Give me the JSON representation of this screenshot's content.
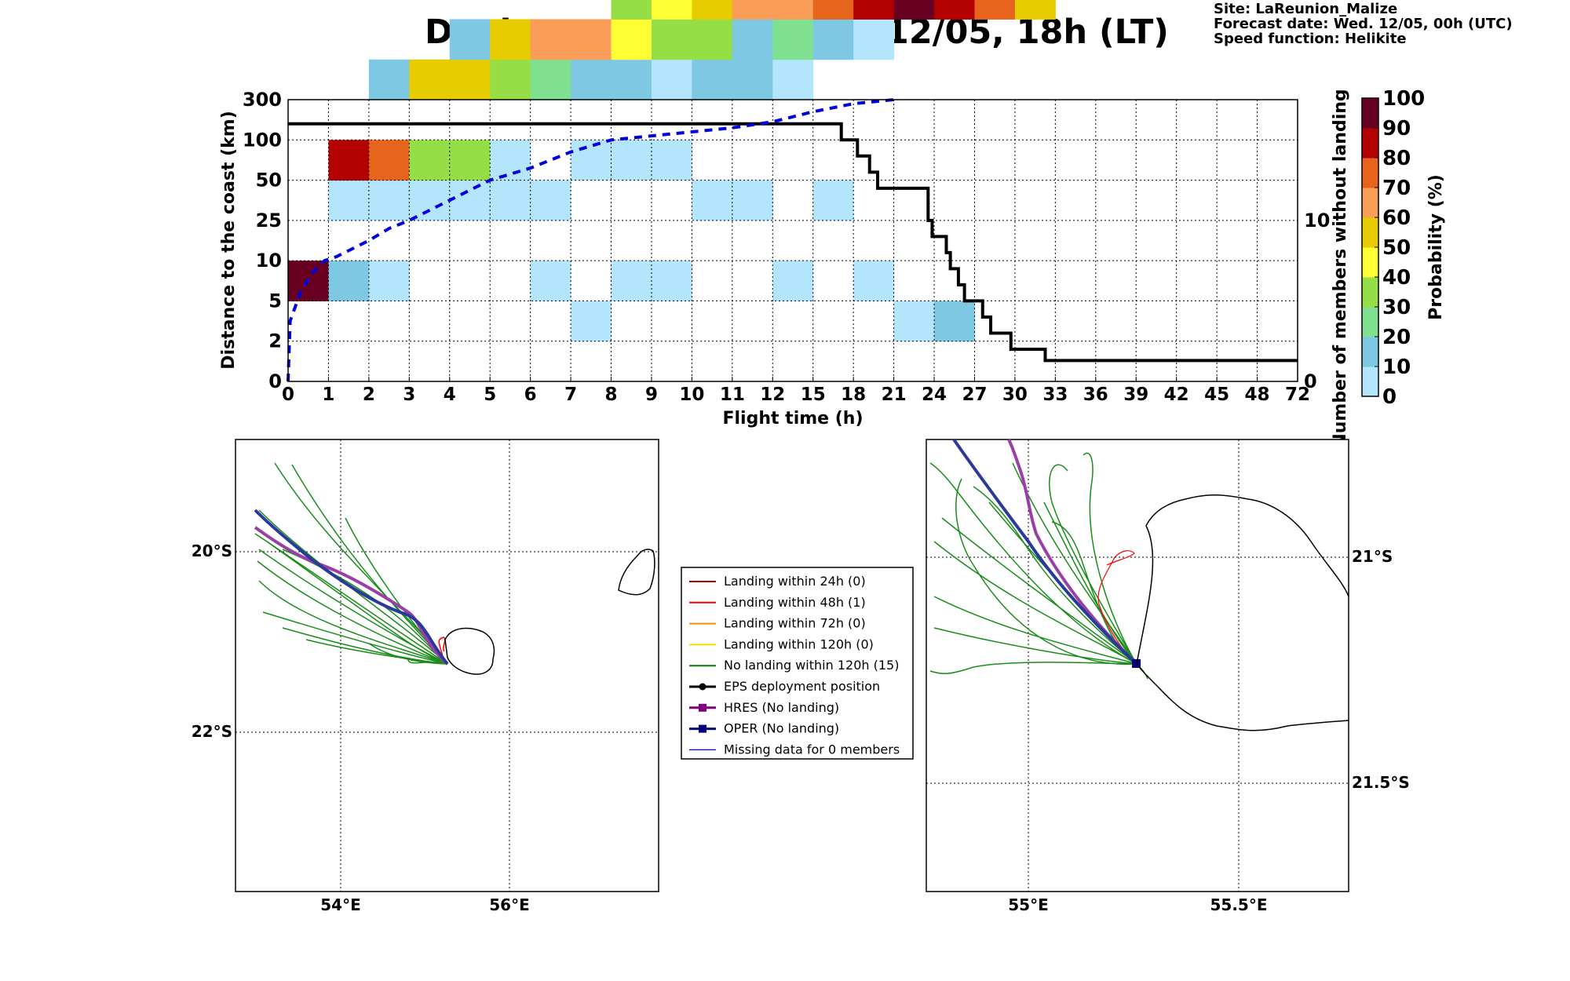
{
  "title": "Deployment date: Wed. 12/05, 18h (LT)",
  "site_info": {
    "site": "Site: LaReunion_Malize",
    "forecast": "Forecast date: Wed. 12/05, 00h (UTC)",
    "speed": "Speed function: Helikite"
  },
  "colors": {
    "bins": [
      "#b3e5fc",
      "#7ec8e3",
      "#7fe08f",
      "#96de45",
      "#ffff33",
      "#e6cc00",
      "#f99d59",
      "#e6641b",
      "#b30000",
      "#680022"
    ],
    "legend": [
      "#8b0000",
      "#ff0000",
      "#ff8c00",
      "#ffd700",
      "#008000",
      "#000000",
      "#800080",
      "#000080",
      "#0000ff"
    ]
  },
  "chart_data": [
    {
      "type": "heatmap",
      "xlabel": "Flight time (h)",
      "ylabel": "Distance to the coast (km)",
      "y2label": "Number of members without landing",
      "colorbar_label": "Probability (%)",
      "x_ticks": [
        "0",
        "1",
        "2",
        "3",
        "4",
        "5",
        "6",
        "7",
        "8",
        "9",
        "10",
        "11",
        "12",
        "15",
        "18",
        "21",
        "24",
        "27",
        "30",
        "33",
        "36",
        "39",
        "42",
        "45",
        "48",
        "72"
      ],
      "y_ticks": [
        "0",
        "2",
        "5",
        "10",
        "25",
        "50",
        "100",
        "300"
      ],
      "y2_ticks": [
        "0",
        "10"
      ],
      "colorbar_ticks": [
        "0",
        "10",
        "20",
        "30",
        "40",
        "50",
        "60",
        "70",
        "80",
        "90",
        "100"
      ],
      "cells": [
        {
          "x": 0,
          "y": 2,
          "bin": 9
        },
        {
          "x": 1,
          "y": 2,
          "bin": 1
        },
        {
          "x": 1,
          "y": 4,
          "bin": 0
        },
        {
          "x": 1,
          "y": 5,
          "bin": 8
        },
        {
          "x": 2,
          "y": 2,
          "bin": 0
        },
        {
          "x": 2,
          "y": 4,
          "bin": 0
        },
        {
          "x": 2,
          "y": 5,
          "bin": 7
        },
        {
          "x": 2,
          "y": 7,
          "bin": 1
        },
        {
          "x": 3,
          "y": 4,
          "bin": 0
        },
        {
          "x": 3,
          "y": 5,
          "bin": 3
        },
        {
          "x": 3,
          "y": 7,
          "bin": 5
        },
        {
          "x": 4,
          "y": 4,
          "bin": 0
        },
        {
          "x": 4,
          "y": 5,
          "bin": 3
        },
        {
          "x": 4,
          "y": 7,
          "bin": 5
        },
        {
          "x": 4,
          "y": 8,
          "bin": 1
        },
        {
          "x": 5,
          "y": 4,
          "bin": 0
        },
        {
          "x": 5,
          "y": 5,
          "bin": 0
        },
        {
          "x": 5,
          "y": 7,
          "bin": 3
        },
        {
          "x": 5,
          "y": 8,
          "bin": 5
        },
        {
          "x": 6,
          "y": 2,
          "bin": 0
        },
        {
          "x": 6,
          "y": 4,
          "bin": 0
        },
        {
          "x": 6,
          "y": 7,
          "bin": 2
        },
        {
          "x": 6,
          "y": 8,
          "bin": 6
        },
        {
          "x": 7,
          "y": 1,
          "bin": 0
        },
        {
          "x": 7,
          "y": 5,
          "bin": 0
        },
        {
          "x": 7,
          "y": 7,
          "bin": 1
        },
        {
          "x": 7,
          "y": 8,
          "bin": 6
        },
        {
          "x": 8,
          "y": 2,
          "bin": 0
        },
        {
          "x": 8,
          "y": 5,
          "bin": 0
        },
        {
          "x": 8,
          "y": 7,
          "bin": 1
        },
        {
          "x": 8,
          "y": 8,
          "bin": 4
        },
        {
          "x": 8,
          "y": 9,
          "bin": 3
        },
        {
          "x": 9,
          "y": 2,
          "bin": 0
        },
        {
          "x": 9,
          "y": 5,
          "bin": 0
        },
        {
          "x": 9,
          "y": 7,
          "bin": 0
        },
        {
          "x": 9,
          "y": 8,
          "bin": 3
        },
        {
          "x": 9,
          "y": 9,
          "bin": 4
        },
        {
          "x": 10,
          "y": 4,
          "bin": 0
        },
        {
          "x": 10,
          "y": 7,
          "bin": 1
        },
        {
          "x": 10,
          "y": 8,
          "bin": 3
        },
        {
          "x": 10,
          "y": 9,
          "bin": 5
        },
        {
          "x": 11,
          "y": 4,
          "bin": 0
        },
        {
          "x": 11,
          "y": 7,
          "bin": 1
        },
        {
          "x": 11,
          "y": 8,
          "bin": 1
        },
        {
          "x": 11,
          "y": 9,
          "bin": 6
        },
        {
          "x": 12,
          "y": 2,
          "bin": 0
        },
        {
          "x": 12,
          "y": 7,
          "bin": 0
        },
        {
          "x": 12,
          "y": 8,
          "bin": 2
        },
        {
          "x": 12,
          "y": 9,
          "bin": 6
        },
        {
          "x": 13,
          "y": 4,
          "bin": 0
        },
        {
          "x": 13,
          "y": 8,
          "bin": 1
        },
        {
          "x": 13,
          "y": 9,
          "bin": 7
        },
        {
          "x": 14,
          "y": 2,
          "bin": 0
        },
        {
          "x": 14,
          "y": 8,
          "bin": 0
        },
        {
          "x": 14,
          "y": 9,
          "bin": 8
        },
        {
          "x": 15,
          "y": 1,
          "bin": 0
        },
        {
          "x": 15,
          "y": 9,
          "bin": 9
        },
        {
          "x": 16,
          "y": 1,
          "bin": 1
        },
        {
          "x": 16,
          "y": 9,
          "bin": 8
        },
        {
          "x": 17,
          "y": 9,
          "bin": 7
        },
        {
          "x": 18,
          "y": 9,
          "bin": 5
        }
      ],
      "y_tick_levels": [
        0,
        1,
        2,
        3,
        4,
        5,
        6,
        7
      ],
      "cell_rows_note_levels": [
        0,
        1,
        2,
        3,
        4,
        5,
        6,
        7
      ],
      "members_without_landing": {
        "y2_range": [
          0,
          17.5
        ],
        "steps": [
          {
            "x": 0,
            "y": 16
          },
          {
            "x": 13.7,
            "y": 16
          },
          {
            "x": 13.7,
            "y": 15
          },
          {
            "x": 14.1,
            "y": 15
          },
          {
            "x": 14.1,
            "y": 14
          },
          {
            "x": 14.4,
            "y": 14
          },
          {
            "x": 14.4,
            "y": 13
          },
          {
            "x": 14.6,
            "y": 13
          },
          {
            "x": 14.6,
            "y": 12
          },
          {
            "x": 15.85,
            "y": 12
          },
          {
            "x": 15.85,
            "y": 10
          },
          {
            "x": 15.95,
            "y": 10
          },
          {
            "x": 15.95,
            "y": 9
          },
          {
            "x": 16.3,
            "y": 9
          },
          {
            "x": 16.3,
            "y": 8
          },
          {
            "x": 16.4,
            "y": 8
          },
          {
            "x": 16.4,
            "y": 7
          },
          {
            "x": 16.6,
            "y": 7
          },
          {
            "x": 16.6,
            "y": 6
          },
          {
            "x": 16.75,
            "y": 6
          },
          {
            "x": 16.75,
            "y": 5
          },
          {
            "x": 17.2,
            "y": 5
          },
          {
            "x": 17.2,
            "y": 4
          },
          {
            "x": 17.4,
            "y": 4
          },
          {
            "x": 17.4,
            "y": 3
          },
          {
            "x": 17.9,
            "y": 3
          },
          {
            "x": 17.9,
            "y": 2
          },
          {
            "x": 18.75,
            "y": 2
          },
          {
            "x": 18.75,
            "y": 1.3
          },
          {
            "x": 25,
            "y": 1.3
          }
        ]
      },
      "median_distance": {
        "points": [
          {
            "x": 0,
            "y": 0
          },
          {
            "x": 0.05,
            "y": 1.5
          },
          {
            "x": 0.3,
            "y": 2.2
          },
          {
            "x": 0.6,
            "y": 2.7
          },
          {
            "x": 0.9,
            "y": 3.0
          },
          {
            "x": 1.2,
            "y": 3.1
          },
          {
            "x": 1.6,
            "y": 3.3
          },
          {
            "x": 2.0,
            "y": 3.5
          },
          {
            "x": 2.5,
            "y": 3.8
          },
          {
            "x": 3.0,
            "y": 4.0
          },
          {
            "x": 4.0,
            "y": 4.5
          },
          {
            "x": 5.0,
            "y": 5.0
          },
          {
            "x": 6.0,
            "y": 5.3
          },
          {
            "x": 7.0,
            "y": 5.7
          },
          {
            "x": 8.0,
            "y": 6.0
          },
          {
            "x": 9.0,
            "y": 6.1
          },
          {
            "x": 10.0,
            "y": 6.2
          },
          {
            "x": 11.0,
            "y": 6.3
          },
          {
            "x": 12.0,
            "y": 6.45
          },
          {
            "x": 13.0,
            "y": 6.7
          },
          {
            "x": 14.0,
            "y": 6.9
          },
          {
            "x": 15.0,
            "y": 7.0
          }
        ]
      }
    },
    {
      "type": "line",
      "name": "trajectories-wide-map",
      "x_ticks": [
        "54°E",
        "56°E"
      ],
      "y_ticks": [
        "20°S",
        "22°S"
      ],
      "xlim": [
        52.75,
        57.75
      ],
      "ylim": [
        -23.9,
        -18.9
      ]
    },
    {
      "type": "line",
      "name": "trajectories-zoom-map",
      "x_ticks": [
        "55°E",
        "55.5°E"
      ],
      "y_ticks": [
        "21°S",
        "21.5°S"
      ],
      "xlim": [
        54.75,
        55.75
      ],
      "ylim": [
        -21.75,
        -20.75
      ]
    }
  ],
  "legend": {
    "items": [
      "Landing within 24h (0)",
      "Landing within 48h (1)",
      "Landing within 72h (0)",
      "Landing within 120h (0)",
      "No landing within 120h (15)",
      "EPS deployment position",
      "HRES (No landing)",
      "OPER (No landing)",
      "Missing data for 0 members"
    ]
  }
}
